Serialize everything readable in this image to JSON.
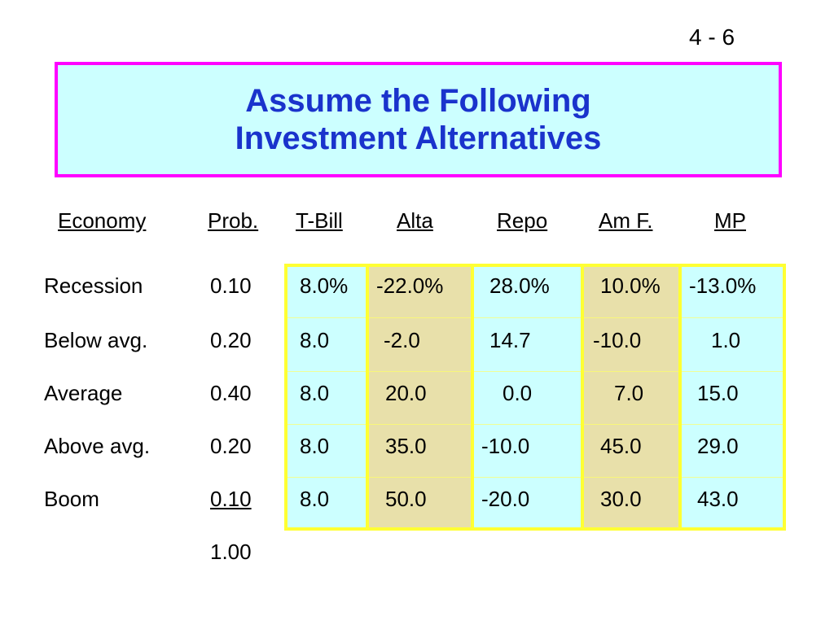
{
  "page_number": "4 - 6",
  "title": {
    "line1": "Assume the Following",
    "line2": "Investment Alternatives"
  },
  "headers": [
    "Economy",
    "Prob.",
    "T-Bill",
    "Alta",
    "Repo",
    "Am F.",
    "MP"
  ],
  "rows": [
    {
      "economy": "Recession",
      "prob": "0.10",
      "tbill": "8.0%",
      "alta": "-22.0%",
      "repo": "28.0%",
      "amf": "10.0%",
      "mp": "-13.0%"
    },
    {
      "economy": "Below avg.",
      "prob": "0.20",
      "tbill": "8.0",
      "alta": "-2.0",
      "repo": "14.7",
      "amf": "-10.0",
      "mp": "1.0"
    },
    {
      "economy": "Average",
      "prob": "0.40",
      "tbill": "8.0",
      "alta": "20.0",
      "repo": "0.0",
      "amf": "7.0",
      "mp": "15.0"
    },
    {
      "economy": "Above avg.",
      "prob": "0.20",
      "tbill": "8.0",
      "alta": "35.0",
      "repo": "-10.0",
      "amf": "45.0",
      "mp": "29.0"
    },
    {
      "economy": "Boom",
      "prob": "0.10",
      "tbill": "8.0",
      "alta": "50.0",
      "repo": "-20.0",
      "amf": "30.0",
      "mp": "43.0"
    }
  ],
  "prob_total": "1.00",
  "colors": {
    "title_bg": "#ccffff",
    "title_border": "#ff00ff",
    "title_text": "#1a33cc",
    "col_cyan": "#ccffff",
    "col_tan": "#e8e0aa",
    "grid": "#ffff33"
  }
}
